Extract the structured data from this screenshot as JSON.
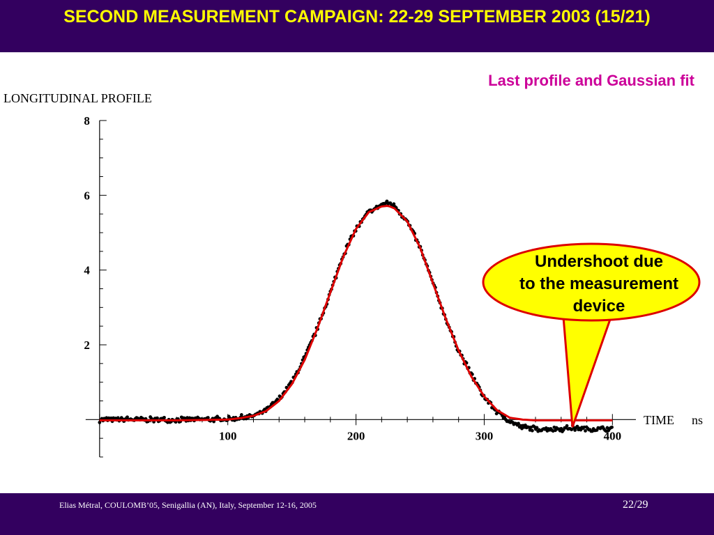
{
  "header": {
    "title": "SECOND MEASUREMENT CAMPAIGN: 22-29 SEPTEMBER 2003 (15/21)"
  },
  "fit_caption": "Last profile and Gaussian fit",
  "callout": {
    "lines": [
      "Undershoot due",
      "to the measurement",
      "device"
    ]
  },
  "footer": {
    "credit": "Elias Métral, COULOMB’05, Senigallia (AN), Italy, September 12-16, 2005",
    "page": "22/29"
  },
  "colors": {
    "header_bg": "#33005f",
    "title": "#ffff00",
    "caption": "#cc0099",
    "fit_line": "#dd0000",
    "data": "#000000",
    "callout_fill": "#ffff00",
    "callout_border": "#dd0000"
  },
  "chart_data": {
    "type": "scatter",
    "title": "LONGITUDINAL  PROFILE",
    "xlabel": "TIME",
    "xunit": "ns",
    "xlim": [
      -1,
      402
    ],
    "ylim": [
      -1,
      8
    ],
    "x_ticks": [
      100,
      200,
      300,
      400
    ],
    "y_ticks": [
      2,
      4,
      6,
      8
    ],
    "series": [
      {
        "kind": "measured",
        "x": [
          0,
          20,
          40,
          60,
          80,
          100,
          110,
          120,
          130,
          140,
          150,
          160,
          170,
          180,
          190,
          200,
          210,
          220,
          225,
          230,
          240,
          250,
          260,
          270,
          280,
          290,
          300,
          310,
          320,
          330,
          340,
          350,
          360,
          370,
          380,
          390,
          400
        ],
        "y": [
          0,
          0,
          0,
          0,
          0,
          0.02,
          0.05,
          0.1,
          0.25,
          0.55,
          1.0,
          1.65,
          2.45,
          3.4,
          4.4,
          5.1,
          5.55,
          5.75,
          5.8,
          5.72,
          5.3,
          4.6,
          3.65,
          2.7,
          1.85,
          1.2,
          0.6,
          0.2,
          -0.05,
          -0.2,
          -0.25,
          -0.25,
          -0.25,
          -0.22,
          -0.25,
          -0.25,
          -0.25
        ]
      },
      {
        "kind": "gaussian_fit",
        "x": [
          0,
          20,
          40,
          60,
          80,
          100,
          110,
          120,
          130,
          140,
          150,
          160,
          170,
          180,
          190,
          200,
          210,
          220,
          225,
          230,
          240,
          250,
          260,
          270,
          280,
          290,
          300,
          310,
          320,
          330,
          340,
          350,
          360,
          370,
          380,
          390,
          400
        ],
        "y": [
          -0.02,
          -0.02,
          -0.02,
          -0.02,
          -0.01,
          0.0,
          0.04,
          0.1,
          0.23,
          0.5,
          0.95,
          1.6,
          2.45,
          3.4,
          4.35,
          5.1,
          5.55,
          5.7,
          5.72,
          5.65,
          5.3,
          4.6,
          3.65,
          2.7,
          1.85,
          1.15,
          0.62,
          0.25,
          0.05,
          0.0,
          -0.02,
          -0.02,
          -0.02,
          -0.02,
          -0.02,
          -0.02,
          -0.02
        ]
      }
    ]
  }
}
